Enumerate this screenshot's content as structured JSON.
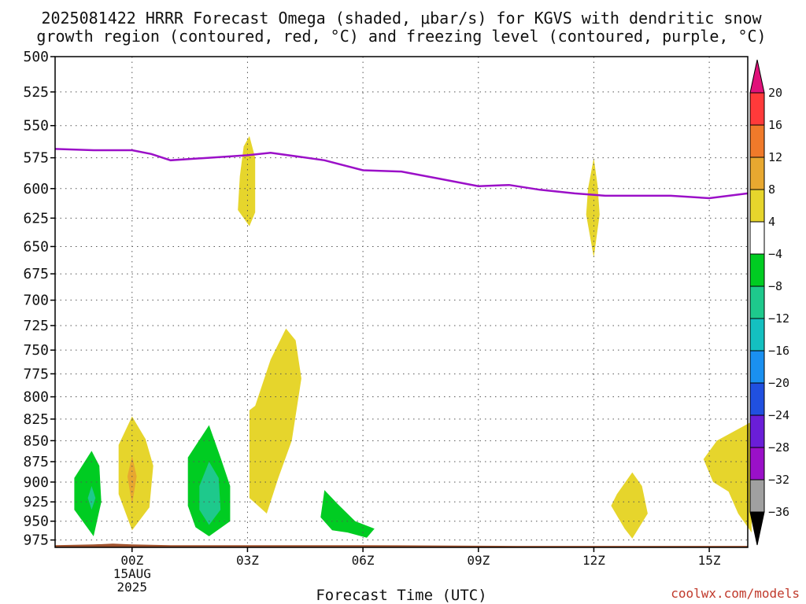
{
  "chart_data": {
    "type": "heatmap",
    "title": [
      "2025081422 HRRR Forecast Omega (shaded, μbar/s) for KGVS with dendritic snow",
      "growth region (contoured, red, °C) and freezing level (contoured, purple, °C)"
    ],
    "xlabel": "Forecast Time (UTC)",
    "credit": "coolwx.com/models",
    "x_ticks": [
      {
        "hour": 0,
        "lines": [
          "00Z",
          "15AUG",
          "2025"
        ]
      },
      {
        "hour": 3,
        "lines": [
          "03Z"
        ]
      },
      {
        "hour": 6,
        "lines": [
          "06Z"
        ]
      },
      {
        "hour": 9,
        "lines": [
          "09Z"
        ]
      },
      {
        "hour": 12,
        "lines": [
          "12Z"
        ]
      },
      {
        "hour": 15,
        "lines": [
          "15Z"
        ]
      }
    ],
    "xlim": [
      -2,
      16
    ],
    "y_ticks": [
      500,
      525,
      550,
      575,
      600,
      625,
      650,
      675,
      700,
      725,
      750,
      775,
      800,
      825,
      850,
      875,
      900,
      925,
      950,
      975
    ],
    "ylim": [
      500,
      985
    ],
    "y_scale": "log",
    "grid": true,
    "colorbar": {
      "levels": [
        20,
        16,
        12,
        8,
        4,
        -4,
        -8,
        -12,
        -16,
        -20,
        -24,
        -28,
        -32,
        -36
      ],
      "colors": [
        "#ff3a3a",
        "#f07a2a",
        "#e8a830",
        "#e6d52c",
        "#ffffff",
        "#00cc22",
        "#1ec98c",
        "#14c0c0",
        "#1a90f0",
        "#2050e0",
        "#6a1ed8",
        "#9a10c8",
        "#a0a0a0"
      ],
      "top_arrow": "#e0127a",
      "bottom_arrow": "#000000"
    },
    "freezing_level": {
      "color": "#9b10c8",
      "points": [
        [
          -2,
          568
        ],
        [
          -1,
          569
        ],
        [
          0,
          569
        ],
        [
          0.5,
          572
        ],
        [
          1,
          577
        ],
        [
          2,
          575
        ],
        [
          3,
          573
        ],
        [
          3.6,
          571
        ],
        [
          5,
          577
        ],
        [
          6,
          585
        ],
        [
          7,
          586
        ],
        [
          8,
          592
        ],
        [
          9,
          598
        ],
        [
          9.8,
          597
        ],
        [
          10.6,
          601
        ],
        [
          11.5,
          604
        ],
        [
          12.3,
          606
        ],
        [
          13,
          606
        ],
        [
          14,
          606
        ],
        [
          15,
          608
        ],
        [
          16,
          604
        ]
      ]
    },
    "omega_regions": [
      {
        "value": 6,
        "color": "#e6d52c",
        "points": [
          [
            3.05,
            558
          ],
          [
            2.9,
            566
          ],
          [
            2.8,
            590
          ],
          [
            2.75,
            618
          ],
          [
            3.05,
            632
          ],
          [
            3.2,
            620
          ],
          [
            3.2,
            575
          ]
        ]
      },
      {
        "value": 6,
        "color": "#e6d52c",
        "points": [
          [
            12,
            575
          ],
          [
            11.85,
            600
          ],
          [
            11.8,
            622
          ],
          [
            12,
            660
          ],
          [
            12.15,
            622
          ],
          [
            12.1,
            598
          ]
        ]
      },
      {
        "value": 6,
        "color": "#e6d52c",
        "points": [
          [
            4.0,
            728
          ],
          [
            3.6,
            760
          ],
          [
            3.2,
            810
          ],
          [
            3.05,
            815
          ],
          [
            3.05,
            920
          ],
          [
            3.5,
            940
          ],
          [
            3.8,
            895
          ],
          [
            4.15,
            850
          ],
          [
            4.4,
            780
          ],
          [
            4.25,
            740
          ]
        ]
      },
      {
        "value": 6,
        "color": "#e6d52c",
        "points": [
          [
            0.0,
            822
          ],
          [
            -0.35,
            855
          ],
          [
            -0.35,
            915
          ],
          [
            0.0,
            962
          ],
          [
            0.45,
            932
          ],
          [
            0.55,
            880
          ],
          [
            0.35,
            848
          ]
        ]
      },
      {
        "value": 10,
        "color": "#e8a830",
        "points": [
          [
            0.0,
            868
          ],
          [
            -0.12,
            893
          ],
          [
            0.0,
            928
          ],
          [
            0.12,
            893
          ]
        ]
      },
      {
        "value": -6,
        "color": "#00cc22",
        "points": [
          [
            -1.05,
            862
          ],
          [
            -1.5,
            895
          ],
          [
            -1.5,
            935
          ],
          [
            -1.0,
            970
          ],
          [
            -0.8,
            925
          ],
          [
            -0.85,
            880
          ]
        ]
      },
      {
        "value": -10,
        "color": "#1ec98c",
        "points": [
          [
            -1.05,
            905
          ],
          [
            -1.15,
            920
          ],
          [
            -1.05,
            935
          ],
          [
            -0.95,
            920
          ]
        ]
      },
      {
        "value": -6,
        "color": "#00cc22",
        "points": [
          [
            2.0,
            832
          ],
          [
            1.45,
            870
          ],
          [
            1.45,
            930
          ],
          [
            1.65,
            958
          ],
          [
            2.0,
            970
          ],
          [
            2.55,
            950
          ],
          [
            2.55,
            905
          ],
          [
            2.3,
            870
          ]
        ]
      },
      {
        "value": -10,
        "color": "#1ec98c",
        "points": [
          [
            2.0,
            875
          ],
          [
            1.75,
            905
          ],
          [
            1.75,
            935
          ],
          [
            2.0,
            955
          ],
          [
            2.3,
            935
          ],
          [
            2.25,
            895
          ]
        ]
      },
      {
        "value": -6,
        "color": "#00cc22",
        "points": [
          [
            5.0,
            910
          ],
          [
            4.9,
            945
          ],
          [
            5.2,
            962
          ],
          [
            5.6,
            965
          ],
          [
            6.1,
            972
          ],
          [
            6.3,
            960
          ],
          [
            5.8,
            950
          ],
          [
            5.35,
            928
          ]
        ]
      },
      {
        "value": 6,
        "color": "#e6d52c",
        "points": [
          [
            13.0,
            888
          ],
          [
            12.6,
            915
          ],
          [
            12.45,
            930
          ],
          [
            12.8,
            960
          ],
          [
            13.0,
            973
          ],
          [
            13.4,
            940
          ],
          [
            13.25,
            905
          ]
        ]
      },
      {
        "value": 6,
        "color": "#e6d52c",
        "points": [
          [
            16.1,
            828
          ],
          [
            15.2,
            850
          ],
          [
            14.85,
            872
          ],
          [
            15.1,
            900
          ],
          [
            15.5,
            912
          ],
          [
            15.75,
            940
          ],
          [
            16.1,
            965
          ]
        ]
      }
    ],
    "terrain": {
      "color": "#a0522d",
      "points": [
        [
          -2,
          982
        ],
        [
          -1,
          981
        ],
        [
          -0.5,
          980
        ],
        [
          0,
          981
        ],
        [
          1,
          982
        ],
        [
          2,
          982
        ],
        [
          6,
          982
        ],
        [
          10,
          983
        ],
        [
          16,
          983
        ]
      ]
    }
  }
}
